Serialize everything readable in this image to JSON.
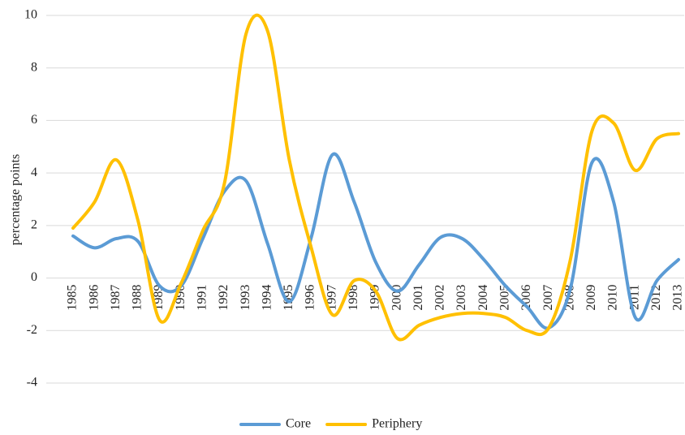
{
  "chart_data": {
    "type": "line",
    "y_label": "percentage points",
    "categories": [
      "1985",
      "1986",
      "1987",
      "1988",
      "1989",
      "1990",
      "1991",
      "1992",
      "1993",
      "1994",
      "1995",
      "1996",
      "1997",
      "1998",
      "1999",
      "2000",
      "2001",
      "2002",
      "2003",
      "2004",
      "2005",
      "2006",
      "2007",
      "2008",
      "2009",
      "2010",
      "2011",
      "2012",
      "2013"
    ],
    "series": [
      {
        "name": "Core",
        "color": "#5b9bd5",
        "values": [
          1.6,
          1.15,
          1.5,
          1.4,
          -0.3,
          -0.3,
          1.5,
          3.3,
          3.7,
          1.3,
          -0.9,
          1.5,
          4.7,
          2.9,
          0.6,
          -0.5,
          0.5,
          1.55,
          1.5,
          0.7,
          -0.3,
          -1.1,
          -1.9,
          -0.4,
          4.4,
          2.9,
          -1.5,
          -0.1,
          0.7
        ]
      },
      {
        "name": "Periphery",
        "color": "#ffc000",
        "values": [
          1.9,
          2.9,
          4.5,
          2.2,
          -1.6,
          -0.2,
          1.8,
          3.6,
          9.3,
          9.4,
          4.5,
          1.2,
          -1.4,
          -0.1,
          -0.5,
          -2.3,
          -1.8,
          -1.5,
          -1.35,
          -1.35,
          -1.5,
          -2.0,
          -1.9,
          0.7,
          5.6,
          5.9,
          4.1,
          5.3,
          5.5
        ]
      }
    ],
    "ylim": [
      -4,
      10
    ],
    "yticks": [
      -4,
      -2,
      0,
      2,
      4,
      6,
      8,
      10
    ],
    "grid": true,
    "legend": "bottom",
    "smooth": true
  }
}
